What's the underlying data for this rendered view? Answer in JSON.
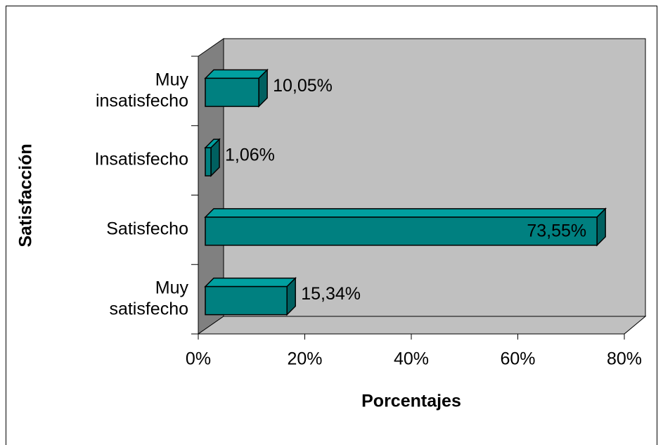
{
  "chart_data": {
    "type": "bar3d_horizontal",
    "x_label": "Porcentajes",
    "y_label": "Satisfacción",
    "categories": [
      "Muy insatisfecho",
      "Insatisfecho",
      "Satisfecho",
      "Muy satisfecho"
    ],
    "values": [
      10.05,
      1.06,
      73.55,
      15.34
    ],
    "value_labels": [
      "10,05%",
      "1,06%",
      "73,55%",
      "15,34%"
    ],
    "color": "#008080",
    "xlim": [
      0,
      80
    ],
    "xticks": [
      {
        "value": 0,
        "label": "0%"
      },
      {
        "value": 20,
        "label": "20%"
      },
      {
        "value": 40,
        "label": "40%"
      },
      {
        "value": 60,
        "label": "60%"
      },
      {
        "value": 80,
        "label": "80%"
      }
    ]
  }
}
